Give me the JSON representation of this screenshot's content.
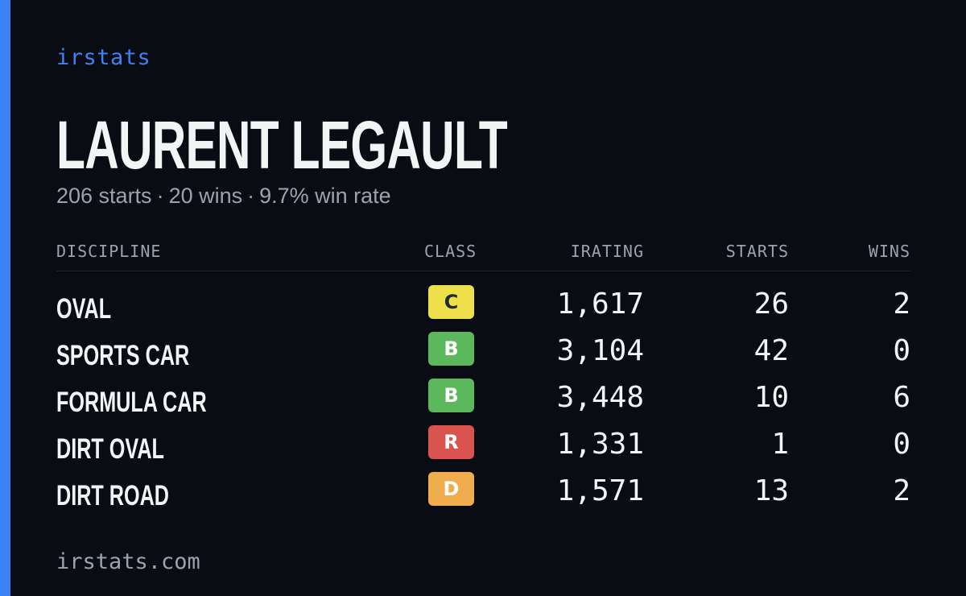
{
  "brand": "irstats",
  "driver": {
    "name": "LAURENT LEGAULT",
    "starts_text": "206 starts",
    "wins_text": "20 wins",
    "winrate_text": "9.7% win rate",
    "separator": "·"
  },
  "table": {
    "headers": {
      "discipline": "DISCIPLINE",
      "class": "CLASS",
      "irating": "IRATING",
      "starts": "STARTS",
      "wins": "WINS"
    },
    "rows": [
      {
        "discipline": "OVAL",
        "class": "C",
        "class_color": "#ede04a",
        "class_text_color": "#1f2937",
        "irating": "1,617",
        "starts": "26",
        "wins": "2"
      },
      {
        "discipline": "SPORTS CAR",
        "class": "B",
        "class_color": "#5cb85c",
        "class_text_color": "#ffffff",
        "irating": "3,104",
        "starts": "42",
        "wins": "0"
      },
      {
        "discipline": "FORMULA CAR",
        "class": "B",
        "class_color": "#5cb85c",
        "class_text_color": "#ffffff",
        "irating": "3,448",
        "starts": "10",
        "wins": "6"
      },
      {
        "discipline": "DIRT OVAL",
        "class": "R",
        "class_color": "#d9534f",
        "class_text_color": "#ffffff",
        "irating": "1,331",
        "starts": "1",
        "wins": "0"
      },
      {
        "discipline": "DIRT ROAD",
        "class": "D",
        "class_color": "#efad4d",
        "class_text_color": "#ffffff",
        "irating": "1,571",
        "starts": "13",
        "wins": "2"
      }
    ]
  },
  "footer": "irstats.com",
  "colors": {
    "accent": "#3b82f6",
    "background": "#0a0c13",
    "text": "#f3f4f6",
    "muted": "#9ca3af"
  }
}
